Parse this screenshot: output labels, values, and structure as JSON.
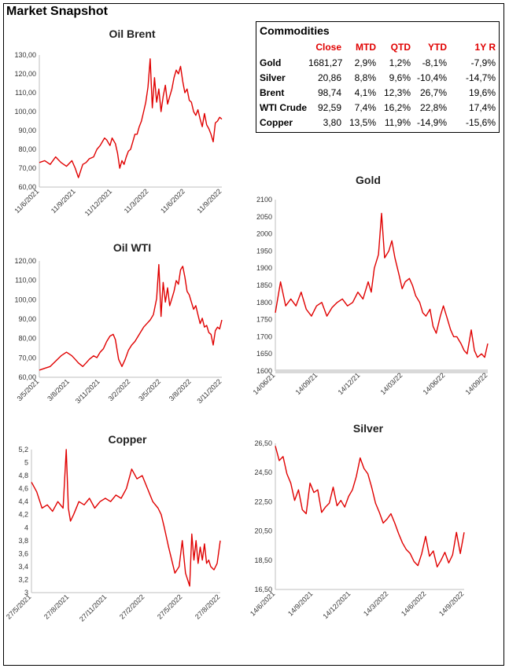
{
  "page_title": "Market Snapshot",
  "table": {
    "title": "Commodities",
    "headers": [
      "Close",
      "MTD",
      "QTD",
      "YTD",
      "1Y R"
    ],
    "rows": [
      {
        "name": "Gold",
        "values": [
          "1681,27",
          "2,9%",
          "1,2%",
          "-8,1%",
          "-7,9%"
        ]
      },
      {
        "name": "Silver",
        "values": [
          "20,86",
          "8,8%",
          "9,6%",
          "-10,4%",
          "-14,7%"
        ]
      },
      {
        "name": "Brent",
        "values": [
          "98,74",
          "4,1%",
          "12,3%",
          "26,7%",
          "19,6%"
        ]
      },
      {
        "name": "WTI Crude",
        "values": [
          "92,59",
          "7,4%",
          "16,2%",
          "22,8%",
          "17,4%"
        ]
      },
      {
        "name": "Copper",
        "values": [
          "3,80",
          "13,5%",
          "11,9%",
          "-14,9%",
          "-15,6%"
        ]
      }
    ]
  },
  "colors": {
    "series": "#e00000",
    "gold_baseline": "#d9d9d9"
  },
  "chart_data": [
    {
      "id": "brent",
      "type": "line",
      "title": "Oil Brent",
      "ylim": [
        60,
        130
      ],
      "yticks": [
        "60,00",
        "70,00",
        "80,00",
        "90,00",
        "100,00",
        "110,00",
        "120,00",
        "130,00"
      ],
      "xticks": [
        "11/6/2021",
        "11/9/2021",
        "11/12/2021",
        "11/3/2022",
        "11/6/2022",
        "11/9/2022"
      ],
      "x": [
        0,
        0.5,
        1,
        1.5,
        2,
        2.5,
        3,
        3.3,
        3.6,
        4,
        4.3,
        4.6,
        5,
        5.3,
        5.6,
        5.8,
        6,
        6.2,
        6.5,
        6.7,
        7,
        7.2,
        7.4,
        7.6,
        7.8,
        8,
        8.2,
        8.4,
        8.6,
        8.8,
        9,
        9.2,
        9.4,
        9.6,
        9.8,
        10,
        10.2,
        10.4,
        10.6,
        10.8,
        11,
        11.2,
        11.4,
        11.6,
        11.8,
        12,
        12.2,
        12.4,
        12.6,
        12.8,
        13,
        13.2,
        13.4,
        13.6,
        13.8,
        14,
        14.2,
        14.4,
        14.6,
        14.8,
        15,
        15.2,
        15.4,
        15.6,
        15.8,
        16,
        16.2,
        16.4,
        16.6,
        16.8
      ],
      "y": [
        73,
        74,
        72,
        76,
        73,
        71,
        74,
        70,
        65,
        72,
        73,
        75,
        76,
        80,
        82,
        84,
        86,
        85,
        82,
        86,
        83,
        78,
        70,
        74,
        72,
        76,
        79,
        80,
        84,
        88,
        88,
        92,
        95,
        100,
        105,
        113,
        128,
        102,
        118,
        105,
        112,
        100,
        108,
        114,
        104,
        108,
        112,
        118,
        122,
        120,
        124,
        116,
        110,
        112,
        106,
        105,
        100,
        98,
        101,
        96,
        92,
        99,
        93,
        91,
        88,
        84,
        94,
        95,
        97,
        96
      ]
    },
    {
      "id": "wti",
      "type": "line",
      "title": "Oil WTI",
      "ylim": [
        60,
        125
      ],
      "yticks": [
        "60,00",
        "70,00",
        "80,00",
        "90,00",
        "100,00",
        "110,00",
        "120,00"
      ],
      "xticks": [
        "3/5/2021",
        "3/8/2021",
        "3/11/2021",
        "3/2/2022",
        "3/5/2022",
        "3/8/2022",
        "3/11/2022"
      ],
      "x": [
        0,
        0.5,
        1,
        1.5,
        2,
        2.5,
        3,
        3.3,
        3.6,
        4,
        4.3,
        4.6,
        5,
        5.3,
        5.6,
        5.9,
        6.2,
        6.5,
        6.8,
        7,
        7.3,
        7.6,
        7.9,
        8.2,
        8.5,
        8.8,
        9,
        9.3,
        9.6,
        9.9,
        10.2,
        10.5,
        10.8,
        11,
        11.2,
        11.4,
        11.6,
        11.8,
        12,
        12.2,
        12.4,
        12.6,
        12.8,
        13,
        13.2,
        13.4,
        13.6,
        13.8,
        14,
        14.2,
        14.4,
        14.6,
        14.8,
        15,
        15.2,
        15.4,
        15.6,
        15.8,
        16,
        16.2,
        16.4,
        16.6,
        16.8
      ],
      "y": [
        64,
        65,
        66,
        69,
        72,
        74,
        72,
        70,
        68,
        66,
        68,
        70,
        72,
        71,
        74,
        76,
        80,
        83,
        84,
        81,
        70,
        66,
        70,
        75,
        78,
        80,
        82,
        85,
        88,
        90,
        92,
        95,
        104,
        123,
        94,
        113,
        102,
        110,
        100,
        104,
        108,
        114,
        112,
        120,
        122,
        116,
        108,
        106,
        102,
        98,
        100,
        95,
        90,
        93,
        88,
        89,
        85,
        84,
        78,
        86,
        88,
        87,
        92
      ]
    },
    {
      "id": "gold",
      "type": "line",
      "title": "Gold",
      "ylim": [
        1600,
        2100
      ],
      "yticks": [
        "1600",
        "1650",
        "1700",
        "1750",
        "1800",
        "1850",
        "1900",
        "1950",
        "2000",
        "2050",
        "2100"
      ],
      "xticks": [
        "14/06/21",
        "14/09/21",
        "14/12/21",
        "14/03/22",
        "14/06/22",
        "14/09/22"
      ],
      "x": [
        0,
        0.5,
        1,
        1.5,
        2,
        2.5,
        3,
        3.5,
        4,
        4.5,
        5,
        5.5,
        6,
        6.5,
        7,
        7.5,
        8,
        8.5,
        9,
        9.3,
        9.6,
        10,
        10.3,
        10.6,
        11,
        11.3,
        11.6,
        12,
        12.3,
        12.6,
        13,
        13.3,
        13.6,
        14,
        14.3,
        14.6,
        15,
        15.3,
        15.6,
        16,
        16.3,
        16.6,
        17,
        17.3,
        17.6,
        18,
        18.3,
        18.6,
        19,
        19.3,
        19.6,
        20,
        20.3,
        20.6
      ],
      "y": [
        1770,
        1860,
        1790,
        1810,
        1790,
        1830,
        1780,
        1760,
        1790,
        1800,
        1760,
        1785,
        1800,
        1810,
        1790,
        1800,
        1830,
        1810,
        1860,
        1830,
        1900,
        1940,
        2060,
        1930,
        1950,
        1980,
        1930,
        1880,
        1840,
        1860,
        1870,
        1850,
        1820,
        1800,
        1770,
        1760,
        1780,
        1730,
        1710,
        1760,
        1790,
        1760,
        1720,
        1700,
        1700,
        1680,
        1660,
        1650,
        1720,
        1660,
        1640,
        1650,
        1640,
        1680
      ]
    },
    {
      "id": "copper",
      "type": "line",
      "title": "Copper",
      "ylim": [
        3,
        5.2
      ],
      "yticks": [
        "3",
        "3,2",
        "3,4",
        "3,6",
        "3,8",
        "4",
        "4,2",
        "4,4",
        "4,6",
        "4,8",
        "5",
        "5,2"
      ],
      "xticks": [
        "27/5/2021",
        "27/8/2021",
        "27/11/2021",
        "27/2/2022",
        "27/5/2022",
        "27/8/2022"
      ],
      "x": [
        0,
        0.5,
        1,
        1.5,
        2,
        2.5,
        3,
        3.3,
        3.5,
        3.7,
        4,
        4.5,
        5,
        5.5,
        6,
        6.5,
        7,
        7.5,
        8,
        8.5,
        9,
        9.5,
        10,
        10.5,
        11,
        11.5,
        12,
        12.3,
        12.6,
        13,
        13.3,
        13.6,
        14,
        14.3,
        14.6,
        15,
        15.2,
        15.4,
        15.6,
        15.8,
        16,
        16.2,
        16.4,
        16.6,
        16.8,
        17,
        17.3,
        17.6,
        17.9
      ],
      "y": [
        4.7,
        4.55,
        4.3,
        4.35,
        4.25,
        4.4,
        4.3,
        5.2,
        4.3,
        4.1,
        4.2,
        4.4,
        4.35,
        4.45,
        4.3,
        4.4,
        4.45,
        4.4,
        4.5,
        4.45,
        4.6,
        4.9,
        4.75,
        4.8,
        4.6,
        4.4,
        4.3,
        4.2,
        4.0,
        3.7,
        3.5,
        3.3,
        3.4,
        3.8,
        3.3,
        3.1,
        3.9,
        3.5,
        3.8,
        3.45,
        3.7,
        3.5,
        3.75,
        3.45,
        3.5,
        3.4,
        3.35,
        3.45,
        3.8
      ]
    },
    {
      "id": "silver",
      "type": "line",
      "title": "Silver",
      "ylim": [
        16.5,
        27.5
      ],
      "yticks": [
        "16,50",
        "18,50",
        "20,50",
        "22,50",
        "24,50",
        "26,50"
      ],
      "xticks": [
        "14/6/2021",
        "14/9/2021",
        "14/12/2021",
        "14/3/2022",
        "14/6/2022",
        "14/9/2022"
      ],
      "x": [
        0,
        0.4,
        0.8,
        1.2,
        1.6,
        2,
        2.4,
        2.8,
        3.2,
        3.6,
        4,
        4.4,
        4.8,
        5.2,
        5.6,
        6,
        6.4,
        6.8,
        7.2,
        7.6,
        8,
        8.4,
        8.8,
        9.2,
        9.6,
        10,
        10.4,
        10.8,
        11.2,
        11.6,
        12,
        12.4,
        12.8,
        13.2,
        13.6,
        14,
        14.4,
        14.8,
        15.2,
        15.6,
        16,
        16.4,
        16.8,
        17.2,
        17.6,
        18,
        18.4,
        18.8,
        19.2,
        19.6
      ],
      "y": [
        27.3,
        26.2,
        26.5,
        25.2,
        24.5,
        23.2,
        24.0,
        22.5,
        22.2,
        24.5,
        23.8,
        24.0,
        22.3,
        22.7,
        23.0,
        24.2,
        22.8,
        23.2,
        22.7,
        23.5,
        24.0,
        25.0,
        26.4,
        25.6,
        25.2,
        24.2,
        23.0,
        22.3,
        21.5,
        21.8,
        22.2,
        21.5,
        20.7,
        20.0,
        19.5,
        19.2,
        18.6,
        18.3,
        19.2,
        20.5,
        19.0,
        19.4,
        18.2,
        18.7,
        19.3,
        18.5,
        19.1,
        20.8,
        19.2,
        20.8
      ]
    }
  ]
}
